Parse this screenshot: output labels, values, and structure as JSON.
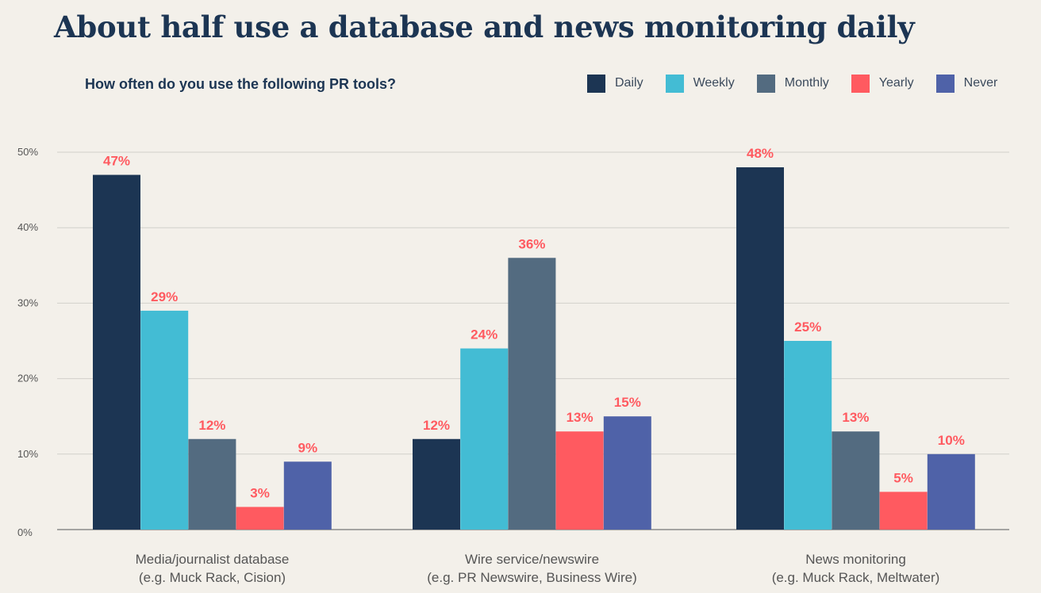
{
  "chart_data": {
    "type": "bar",
    "title": "About half use a database and news monitoring daily",
    "subtitle": "How often do you use the following PR tools?",
    "categories": [
      [
        "Media/journalist database",
        "(e.g. Muck Rack, Cision)"
      ],
      [
        "Wire service/newswire",
        "(e.g. PR Newswire, Business Wire)"
      ],
      [
        "News monitoring",
        "(e.g. Muck Rack, Meltwater)"
      ]
    ],
    "series": [
      {
        "name": "Daily",
        "color": "#1c3553",
        "values": [
          47,
          12,
          48
        ],
        "labels": [
          "47%",
          "12%",
          "48%"
        ]
      },
      {
        "name": "Weekly",
        "color": "#43bcd4",
        "values": [
          29,
          24,
          25
        ],
        "labels": [
          "29%",
          "24%",
          "25%"
        ]
      },
      {
        "name": "Monthly",
        "color": "#536b80",
        "values": [
          12,
          36,
          13
        ],
        "labels": [
          "12%",
          "36%",
          "13%"
        ]
      },
      {
        "name": "Yearly",
        "color": "#ff5a60",
        "values": [
          3,
          13,
          5
        ],
        "labels": [
          "3%",
          "13%",
          "5%"
        ]
      },
      {
        "name": "Never",
        "color": "#4f62a8",
        "values": [
          9,
          15,
          10
        ],
        "labels": [
          "9%",
          "15%",
          "10%"
        ]
      }
    ],
    "yticks": [
      {
        "value": 0,
        "label": "0%"
      },
      {
        "value": 10,
        "label": "10%"
      },
      {
        "value": 20,
        "label": "20%"
      },
      {
        "value": 30,
        "label": "30%"
      },
      {
        "value": 40,
        "label": "40%"
      },
      {
        "value": 50,
        "label": "50%"
      }
    ],
    "ylim": [
      0,
      50
    ],
    "grid": true,
    "legend_position": "top-right"
  }
}
